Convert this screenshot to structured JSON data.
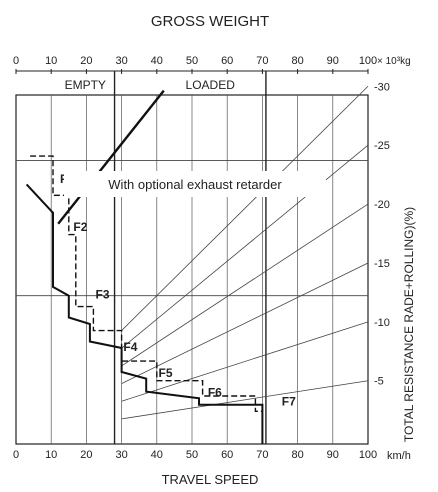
{
  "chart_data": {
    "type": "line",
    "title": "GROSS WEIGHT",
    "top_axis": {
      "ticks": [
        "0",
        "10",
        "20",
        "30",
        "40",
        "50",
        "60",
        "70",
        "80",
        "90",
        "100"
      ],
      "unit": "× 10³kg",
      "empty_label": "EMPTY",
      "loaded_label": "LOADED",
      "empty_value": 28,
      "loaded_value": 71
    },
    "bottom_axis": {
      "ticks": [
        "0",
        "10",
        "20",
        "30",
        "40",
        "50",
        "60",
        "70",
        "80",
        "90",
        "100"
      ],
      "unit": "km/h",
      "label": "TRAVEL SPEED",
      "range": [
        0,
        100
      ]
    },
    "right_axis": {
      "ticks": [
        "30",
        "25",
        "20",
        "15",
        "10",
        "5"
      ],
      "label": "TOTAL RESISTANCE  RADE+ROLLING)(%)"
    },
    "y_range": [
      0,
      16
    ],
    "resistance_lines": [
      {
        "percent": 5,
        "y_at_0": 0.4,
        "y_at_100": 2.9
      },
      {
        "percent": 10,
        "y_at_0": 0.4,
        "y_at_100": 5.6
      },
      {
        "percent": 15,
        "y_at_0": 0.4,
        "y_at_100": 8.3
      },
      {
        "percent": 20,
        "y_at_0": 0.4,
        "y_at_100": 11.0
      },
      {
        "percent": 25,
        "y_at_0": 0.4,
        "y_at_100": 13.7
      },
      {
        "percent": 30,
        "y_at_0": 0.4,
        "y_at_100": 16.4
      }
    ],
    "series": [
      {
        "style": "solid",
        "points": [
          [
            3,
            11.9
          ],
          [
            10.5,
            10.6
          ],
          [
            10.5,
            7.2
          ],
          [
            15,
            6.8
          ],
          [
            15,
            5.8
          ],
          [
            21,
            5.5
          ],
          [
            21,
            4.7
          ],
          [
            30,
            4.4
          ],
          [
            30,
            3.3
          ],
          [
            37,
            3.0
          ],
          [
            37,
            2.4
          ],
          [
            52,
            2.1
          ],
          [
            52,
            1.8
          ],
          [
            70,
            1.8
          ],
          [
            70,
            0
          ]
        ]
      },
      {
        "style": "dashed",
        "points": [
          [
            4,
            13.2
          ],
          [
            10.5,
            13.2
          ],
          [
            10.5,
            11.4
          ],
          [
            15,
            11.4
          ],
          [
            15,
            9.6
          ],
          [
            17,
            9.6
          ],
          [
            17,
            6.3
          ],
          [
            22,
            6.3
          ],
          [
            22,
            5.2
          ],
          [
            30,
            5.2
          ],
          [
            30,
            3.8
          ],
          [
            40,
            3.8
          ],
          [
            40,
            2.9
          ],
          [
            53,
            2.9
          ],
          [
            53,
            2.2
          ],
          [
            68,
            2.2
          ],
          [
            68,
            1.5
          ],
          [
            70,
            1.5
          ]
        ]
      },
      {
        "style": "solid-thick",
        "name": "With optional exhaust retarder",
        "points": [
          [
            12,
            10.1
          ],
          [
            42,
            16.2
          ]
        ]
      }
    ],
    "gear_labels": [
      {
        "text": "F1",
        "x": 12.5,
        "y": 12.2
      },
      {
        "text": "F2",
        "x": 16.3,
        "y": 10.0
      },
      {
        "text": "F3",
        "x": 22.6,
        "y": 6.9
      },
      {
        "text": "F4",
        "x": 30.5,
        "y": 4.5
      },
      {
        "text": "F5",
        "x": 40.5,
        "y": 3.3
      },
      {
        "text": "F6",
        "x": 54.5,
        "y": 2.4
      },
      {
        "text": "F7",
        "x": 75.5,
        "y": 2.0
      }
    ],
    "annotation": "With optional exhaust retarder",
    "grid": true
  }
}
